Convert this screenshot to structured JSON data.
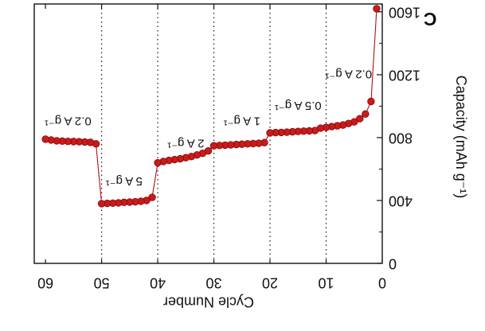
{
  "panel_label": "C",
  "chart_data": {
    "type": "scatter",
    "title": "",
    "xlabel": "Cycle Number",
    "ylabel": "Capacity (mAh g⁻¹)",
    "xlim": [
      0,
      62
    ],
    "ylim": [
      0,
      1650
    ],
    "x_ticks": [
      0,
      10,
      20,
      30,
      40,
      50,
      60
    ],
    "y_ticks": [
      0,
      400,
      800,
      1200,
      1600
    ],
    "x_tick_labels": [
      "0",
      "10",
      "20",
      "30",
      "40",
      "50",
      "60"
    ],
    "y_tick_labels": [
      "0",
      "400",
      "800",
      "1200",
      "1600"
    ],
    "grid": false,
    "mirrored": true,
    "dividers_at": [
      10,
      20,
      30,
      40,
      50
    ],
    "marker_color": "#cc1a1a",
    "line_color": "#b01010",
    "rate_labels": [
      {
        "text": "0.2 A g⁻¹",
        "x": 6,
        "y": 1200
      },
      {
        "text": "0.5 A g⁻¹",
        "x": 15,
        "y": 1000
      },
      {
        "text": "1 A g⁻¹",
        "x": 25,
        "y": 900
      },
      {
        "text": "2 A g⁻¹",
        "x": 35,
        "y": 760
      },
      {
        "text": "5 A g⁻¹",
        "x": 46,
        "y": 520
      },
      {
        "text": "0.2 A g⁻¹",
        "x": 56,
        "y": 900
      }
    ],
    "series": [
      {
        "x": [
          1,
          2,
          3,
          4,
          5,
          6,
          7,
          8,
          9,
          10,
          11,
          12,
          13,
          14,
          15,
          16,
          17,
          18,
          19,
          20,
          21,
          22,
          23,
          24,
          25,
          26,
          27,
          28,
          29,
          30,
          31,
          32,
          33,
          34,
          35,
          36,
          37,
          38,
          39,
          40,
          41,
          42,
          43,
          44,
          45,
          46,
          47,
          48,
          49,
          50,
          51,
          52,
          53,
          54,
          55,
          56,
          57,
          58,
          59,
          60
        ],
        "values": [
          1620,
          1030,
          950,
          920,
          900,
          890,
          880,
          875,
          870,
          865,
          860,
          845,
          843,
          841,
          839,
          837,
          835,
          833,
          832,
          830,
          768,
          764,
          762,
          760,
          758,
          756,
          754,
          752,
          750,
          748,
          715,
          700,
          690,
          680,
          672,
          665,
          660,
          655,
          648,
          640,
          420,
          400,
          395,
          392,
          390,
          388,
          385,
          383,
          382,
          380,
          760,
          770,
          772,
          774,
          775,
          776,
          778,
          780,
          785,
          790
        ]
      }
    ]
  }
}
